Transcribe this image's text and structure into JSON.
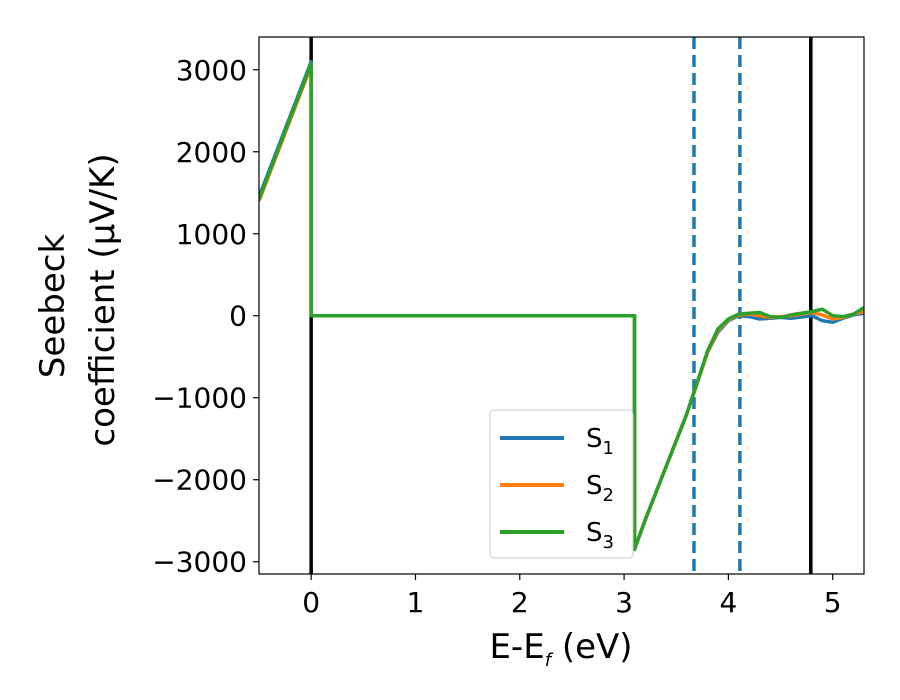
{
  "chart_data": {
    "type": "line",
    "title": "",
    "xlabel": {
      "main": "E-E",
      "sub": "f",
      "unit": " (eV)"
    },
    "ylabel": {
      "line1": "Seebeck",
      "line2": "coefficient  (μV/K)"
    },
    "xlim": [
      -0.5,
      5.3
    ],
    "ylim": [
      -3150,
      3400
    ],
    "xticks": [
      0,
      1,
      2,
      3,
      4,
      5
    ],
    "xtick_labels": [
      "0",
      "1",
      "2",
      "3",
      "4",
      "5"
    ],
    "yticks": [
      -3000,
      -2000,
      -1000,
      0,
      1000,
      2000,
      3000
    ],
    "ytick_labels": [
      "−3000",
      "−2000",
      "−1000",
      "0",
      "1000",
      "2000",
      "3000"
    ],
    "grid": false,
    "legend_position": "lower-center",
    "vertical_lines": [
      {
        "x": 0.0,
        "style": "solid",
        "color": "#000000"
      },
      {
        "x": 4.79,
        "style": "solid",
        "color": "#000000"
      },
      {
        "x": 3.67,
        "style": "dashed",
        "color": "#1f77b4"
      },
      {
        "x": 4.11,
        "style": "dashed",
        "color": "#1f77b4"
      }
    ],
    "series": [
      {
        "name": "S",
        "sub": "1",
        "color": "#1f77b4",
        "x": [
          -0.5,
          0.0,
          0.0,
          3.1,
          3.1,
          3.2,
          3.4,
          3.6,
          3.8,
          3.9,
          4.0,
          4.1,
          4.2,
          4.3,
          4.4,
          4.5,
          4.6,
          4.8,
          4.9,
          5.0,
          5.1,
          5.2,
          5.3
        ],
        "y": [
          1450,
          3100,
          0,
          0,
          -2850,
          -2500,
          -1850,
          -1200,
          -450,
          -200,
          -60,
          0,
          -10,
          -40,
          -30,
          -20,
          -30,
          0,
          -60,
          -80,
          -30,
          10,
          30
        ]
      },
      {
        "name": "S",
        "sub": "2",
        "color": "#ff7f0e",
        "x": [
          -0.5,
          0.0,
          0.0,
          3.1,
          3.1,
          3.2,
          3.4,
          3.6,
          3.8,
          3.9,
          4.0,
          4.1,
          4.2,
          4.3,
          4.4,
          4.5,
          4.6,
          4.8,
          4.9,
          5.0,
          5.1,
          5.2,
          5.3
        ],
        "y": [
          1400,
          3050,
          0,
          0,
          -2850,
          -2500,
          -1850,
          -1200,
          -450,
          -180,
          -50,
          10,
          20,
          0,
          -20,
          -10,
          0,
          40,
          10,
          -40,
          -20,
          20,
          50
        ]
      },
      {
        "name": "S",
        "sub": "3",
        "color": "#2ca02c",
        "x": [
          -0.5,
          0.0,
          0.0,
          3.1,
          3.1,
          3.2,
          3.4,
          3.6,
          3.8,
          3.9,
          4.0,
          4.1,
          4.2,
          4.3,
          4.4,
          4.5,
          4.6,
          4.8,
          4.9,
          5.0,
          5.1,
          5.2,
          5.3
        ],
        "y": [
          1420,
          3080,
          0,
          0,
          -2850,
          -2500,
          -1850,
          -1200,
          -430,
          -160,
          -40,
          20,
          30,
          40,
          -10,
          -20,
          10,
          50,
          80,
          0,
          -10,
          20,
          100
        ]
      }
    ]
  }
}
